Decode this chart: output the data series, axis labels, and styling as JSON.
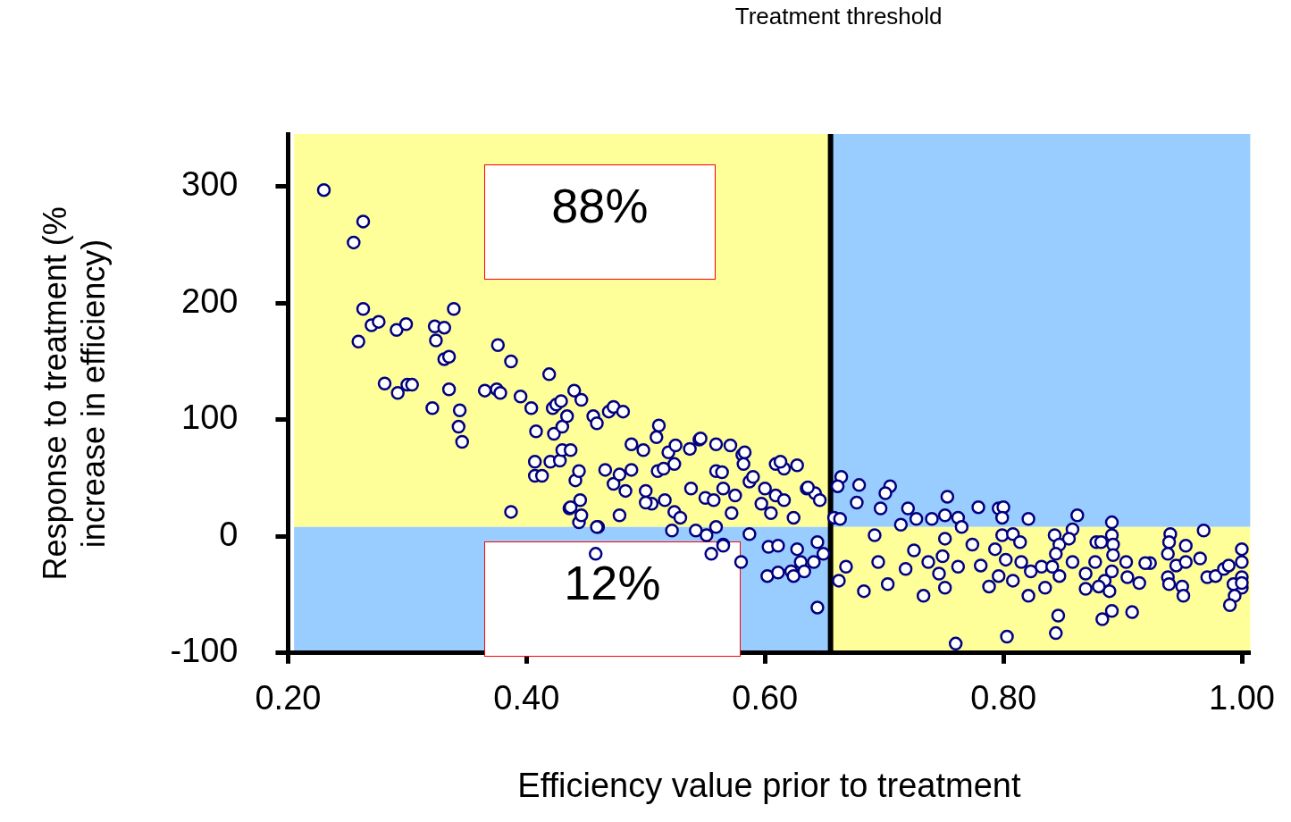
{
  "chart_data": {
    "type": "scatter",
    "xlabel": "Efficiency value prior to treatment",
    "ylabel": "Response to treatment (% increase in efficiency)",
    "xlim": [
      0.2,
      1.007
    ],
    "ylim": [
      -100,
      345
    ],
    "xticks": [
      {
        "value": 0.2,
        "label": "0.20"
      },
      {
        "value": 0.4,
        "label": "0.40"
      },
      {
        "value": 0.6,
        "label": "0.60"
      },
      {
        "value": 0.8,
        "label": "0.80"
      },
      {
        "value": 1.0,
        "label": "1.00"
      }
    ],
    "yticks": [
      -100,
      0,
      100,
      200,
      300
    ],
    "grid": false,
    "legend": false,
    "marker": "circle",
    "ref_lines": [
      {
        "axis": "x",
        "value": 0.655,
        "label": "Treatment threshold",
        "color": "#000000",
        "line_style": "solid"
      }
    ],
    "bands": [
      {
        "axis": "x",
        "from": 0.205,
        "to": 0.655,
        "color": "#ffff99"
      },
      {
        "axis": "x",
        "from": 0.655,
        "to": 1.007,
        "color": "#99ccff"
      },
      {
        "axis": "y",
        "from": -100,
        "to": 8,
        "color": "#99ccff"
      },
      {
        "axis": "y",
        "from": -100,
        "to": 8,
        "color": "#ffff99"
      }
    ],
    "annotations": [
      "88%",
      "12%"
    ],
    "series": [
      {
        "color": "#000080",
        "x": [
          0.23,
          0.255,
          0.263,
          0.263,
          0.259,
          0.27,
          0.276,
          0.291,
          0.299,
          0.281,
          0.292,
          0.3,
          0.304,
          0.323,
          0.331,
          0.339,
          0.324,
          0.331,
          0.335,
          0.321,
          0.335,
          0.344,
          0.343,
          0.346,
          0.376,
          0.387,
          0.365,
          0.375,
          0.378,
          0.395,
          0.404,
          0.408,
          0.419,
          0.387,
          0.407,
          0.407,
          0.413,
          0.42,
          0.428,
          0.422,
          0.425,
          0.429,
          0.423,
          0.43,
          0.43,
          0.437,
          0.44,
          0.446,
          0.434,
          0.436,
          0.445,
          0.441,
          0.444,
          0.444,
          0.456,
          0.459,
          0.469,
          0.473,
          0.481,
          0.466,
          0.473,
          0.478,
          0.483,
          0.488,
          0.46,
          0.458,
          0.488,
          0.498,
          0.511,
          0.509,
          0.519,
          0.525,
          0.545,
          0.537,
          0.559,
          0.571,
          0.581,
          0.582,
          0.51,
          0.515,
          0.524,
          0.5,
          0.505,
          0.516,
          0.524,
          0.529,
          0.538,
          0.55,
          0.559,
          0.564,
          0.557,
          0.565,
          0.575,
          0.572,
          0.559,
          0.542,
          0.555,
          0.565,
          0.58,
          0.587,
          0.59,
          0.6,
          0.609,
          0.616,
          0.627,
          0.597,
          0.605,
          0.609,
          0.616,
          0.624,
          0.635,
          0.642,
          0.646,
          0.603,
          0.611,
          0.602,
          0.611,
          0.622,
          0.627,
          0.63,
          0.644,
          0.649,
          0.644,
          0.587,
          0.546,
          0.583,
          0.613,
          0.636,
          0.459,
          0.522,
          0.551,
          0.565,
          0.633,
          0.624,
          0.641,
          0.5,
          0.478,
          0.446,
          0.437,
          0.664,
          0.661,
          0.679,
          0.658,
          0.663,
          0.662,
          0.668,
          0.683,
          0.677,
          0.705,
          0.701,
          0.72,
          0.697,
          0.692,
          0.714,
          0.695,
          0.703,
          0.718,
          0.733,
          0.727,
          0.74,
          0.725,
          0.737,
          0.753,
          0.751,
          0.762,
          0.765,
          0.751,
          0.749,
          0.746,
          0.751,
          0.76,
          0.774,
          0.779,
          0.762,
          0.781,
          0.788,
          0.796,
          0.8,
          0.799,
          0.799,
          0.793,
          0.802,
          0.796,
          0.803,
          0.808,
          0.814,
          0.808,
          0.821,
          0.815,
          0.823,
          0.821,
          0.832,
          0.835,
          0.843,
          0.847,
          0.844,
          0.841,
          0.847,
          0.846,
          0.844,
          0.862,
          0.858,
          0.855,
          0.858,
          0.869,
          0.869,
          0.878,
          0.882,
          0.877,
          0.885,
          0.88,
          0.889,
          0.883,
          0.891,
          0.891,
          0.891,
          0.892,
          0.892,
          0.891,
          0.903,
          0.904,
          0.914,
          0.908,
          0.923,
          0.919,
          0.94,
          0.939,
          0.938,
          0.945,
          0.938,
          0.939,
          0.953,
          0.953,
          0.95,
          0.951,
          0.968,
          0.965,
          0.971,
          0.978,
          0.985,
          0.989,
          1.0,
          1.0,
          1.0,
          1.0,
          0.993,
          0.994,
          0.99,
          1.0
        ],
        "values": [
          297,
          252,
          270,
          195,
          167,
          181,
          184,
          177,
          182,
          131,
          123,
          130,
          130,
          180,
          179,
          195,
          168,
          152,
          154,
          110,
          126,
          108,
          94,
          81,
          164,
          150,
          125,
          126,
          123,
          120,
          110,
          90,
          139,
          21,
          64,
          52,
          52,
          64,
          65,
          110,
          113,
          116,
          88,
          94,
          74,
          74,
          125,
          117,
          103,
          24,
          31,
          48,
          56,
          12,
          103,
          97,
          107,
          111,
          107,
          57,
          45,
          53,
          39,
          57,
          8,
          -15,
          79,
          74,
          95,
          85,
          72,
          78,
          83,
          75,
          79,
          78,
          70,
          62,
          56,
          58,
          62,
          39,
          28,
          31,
          21,
          16,
          41,
          33,
          56,
          55,
          31,
          41,
          35,
          20,
          8,
          5,
          -15,
          -7,
          -22,
          47,
          51,
          41,
          62,
          58,
          61,
          28,
          20,
          35,
          31,
          16,
          41,
          37,
          31,
          -9,
          -8,
          -34,
          -31,
          -30,
          -11,
          -22,
          -5,
          -15,
          -61,
          2,
          84,
          72,
          64,
          42,
          8,
          5,
          1,
          -8,
          -30,
          -34,
          -22,
          29,
          18,
          18,
          25,
          51,
          43,
          44,
          16,
          15,
          -38,
          -26,
          -47,
          29,
          43,
          37,
          24,
          24,
          1,
          10,
          -22,
          -41,
          -28,
          -51,
          15,
          15,
          -12,
          -22,
          34,
          18,
          16,
          8,
          -2,
          -17,
          -32,
          -44,
          -92,
          -7,
          25,
          -26,
          -25,
          -43,
          24,
          25,
          16,
          1,
          -11,
          -20,
          -34,
          -86,
          2,
          -5,
          -38,
          15,
          -22,
          -30,
          -51,
          -26,
          -44,
          1,
          -7,
          -15,
          -26,
          -34,
          -68,
          -83,
          18,
          6,
          -2,
          -22,
          -32,
          -45,
          -5,
          -5,
          -22,
          -38,
          -43,
          -47,
          -71,
          -64,
          12,
          1,
          -7,
          -16,
          -30,
          -22,
          -35,
          -40,
          -65,
          -23,
          -23,
          2,
          -5,
          -15,
          -25,
          -35,
          -41,
          -8,
          -22,
          -43,
          -51,
          5,
          -19,
          -35,
          -34,
          -28,
          -25,
          -11,
          -22,
          -35,
          -44,
          -41,
          -51,
          -59,
          -40
        ]
      }
    ]
  }
}
